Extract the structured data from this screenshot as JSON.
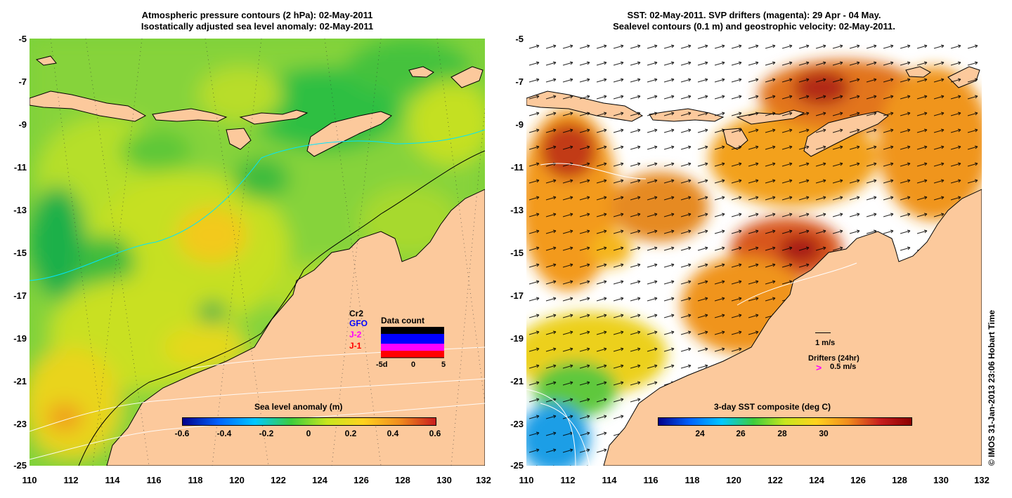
{
  "left_panel": {
    "title_line1": "Atmospheric pressure contours (2 hPa): 02-May-2011",
    "title_line2": "Isostatically adjusted sea level anomaly: 02-May-2011",
    "colorbar_label": "Sea level anomaly (m)",
    "colorbar_ticks": [
      "-0.6",
      "-0.4",
      "-0.2",
      "0",
      "0.2",
      "0.4",
      "0.6"
    ],
    "data_count": {
      "title": "Data count",
      "satellites": [
        "Cr2",
        "GFO",
        "J-2",
        "J-1"
      ],
      "satellite_colors": [
        "#000000",
        "#0000ff",
        "#ff00ff",
        "#ff0000"
      ],
      "axis_ticks": [
        "-5d",
        "0",
        "5"
      ]
    }
  },
  "right_panel": {
    "title_line1": "SST: 02-May-2011. SVP drifters (magenta): 29 Apr - 04 May.",
    "title_line2": "Sealevel contours (0.1 m) and geostrophic velocity: 02-May-2011.",
    "colorbar_label": "3-day SST composite (deg C)",
    "colorbar_ticks": [
      "24",
      "26",
      "28",
      "30"
    ],
    "velocity_scale": "1 m/s",
    "drifters_label": "Drifters (24hr)",
    "drifters_speed": "0.5 m/s",
    "drifter_symbol": ">",
    "drifter_color": "#ff00ff"
  },
  "axes": {
    "y_ticks": [
      "-5",
      "-7",
      "-9",
      "-11",
      "-13",
      "-15",
      "-17",
      "-19",
      "-21",
      "-23",
      "-25"
    ],
    "x_ticks": [
      "110",
      "112",
      "114",
      "116",
      "118",
      "120",
      "122",
      "124",
      "126",
      "128",
      "130",
      "132"
    ],
    "lat_range": [
      -25,
      -5
    ],
    "lon_range": [
      110,
      132
    ]
  },
  "credit": "© IMOS 31-Jan-2013 23:06 Hobart Time",
  "colors": {
    "land": "#fcc99c",
    "sla_low": "#00008b",
    "sla_high": "#b40000",
    "sst_missing": "#ffffff"
  }
}
